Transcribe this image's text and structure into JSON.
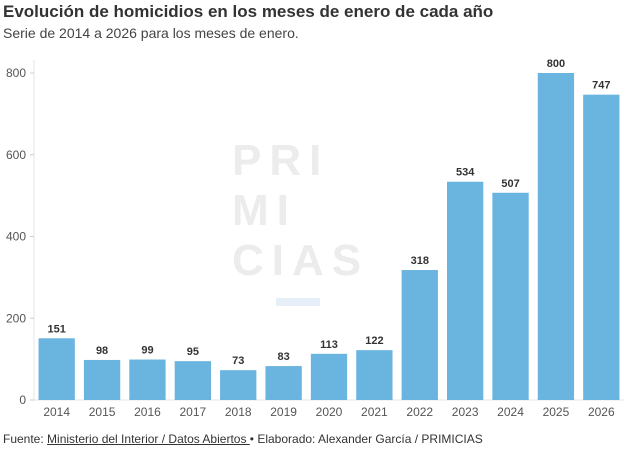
{
  "chart_data": {
    "type": "bar",
    "title": "Evolución de homicidios en los meses de enero de cada año",
    "subtitle": "Serie de 2014 a 2026 para los meses de enero.",
    "categories": [
      "2014",
      "2015",
      "2016",
      "2017",
      "2018",
      "2019",
      "2020",
      "2021",
      "2022",
      "2023",
      "2024",
      "2025",
      "2026"
    ],
    "values": [
      151,
      98,
      99,
      95,
      73,
      83,
      113,
      122,
      318,
      534,
      507,
      800,
      747
    ],
    "yticks": [
      0,
      200,
      400,
      600,
      800
    ],
    "ylim": [
      0,
      800
    ],
    "xlabel": "",
    "ylabel": "",
    "bar_color": "#6ab4e0",
    "watermark": "PRIMICIAS"
  },
  "footer": {
    "prefix": "Fuente: ",
    "source_link": "Ministerio del Interior / Datos Abiertos ",
    "suffix": "• Elaborado: Alexander García / PRIMICIAS"
  }
}
